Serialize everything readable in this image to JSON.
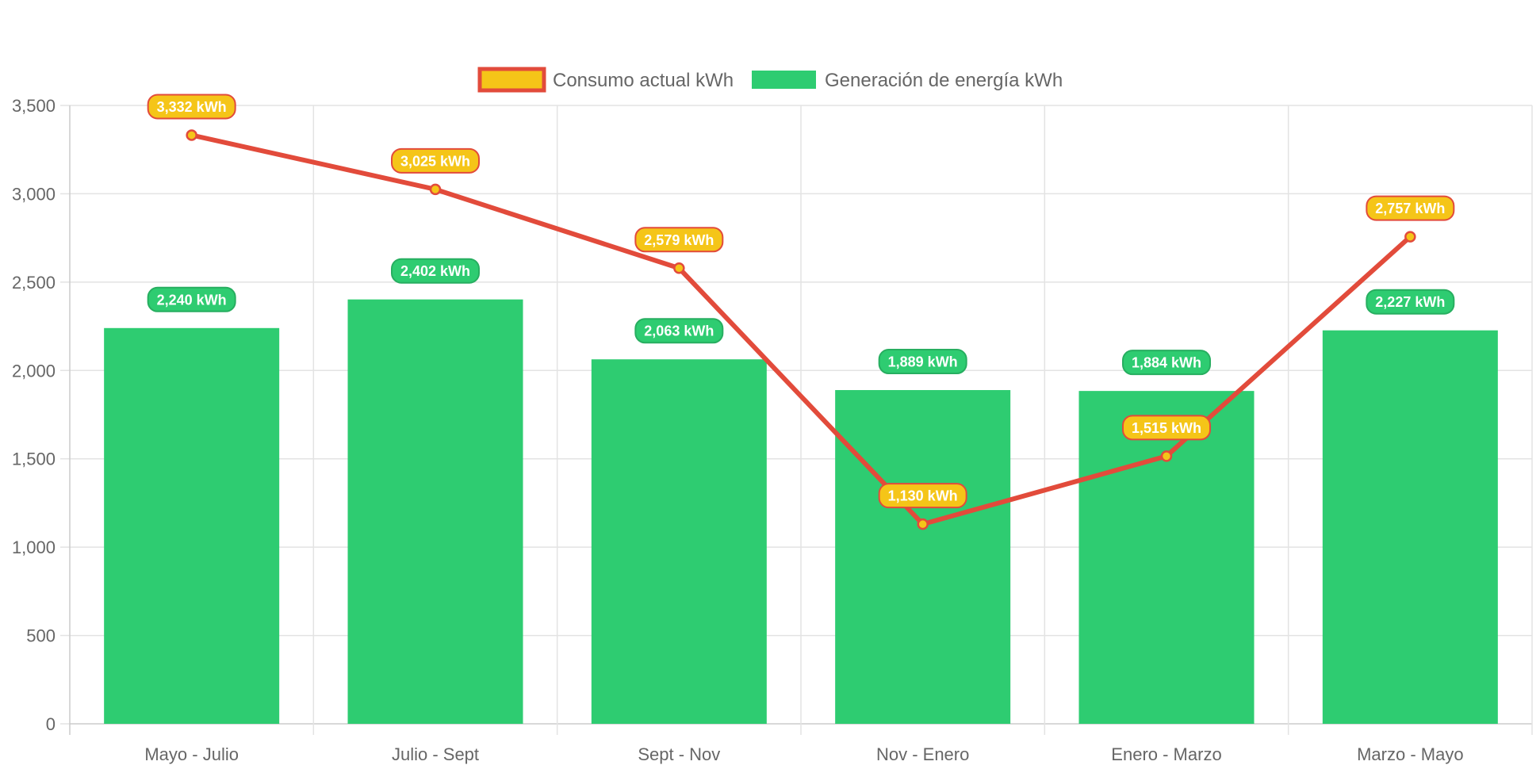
{
  "chart_data": {
    "type": "bar",
    "title": "",
    "xlabel": "",
    "ylabel": "",
    "categories": [
      "Mayo - Julio",
      "Julio - Sept",
      "Sept - Nov",
      "Nov - Enero",
      "Enero - Marzo",
      "Marzo - Mayo"
    ],
    "ylim": [
      0,
      3500
    ],
    "ytick_step": 500,
    "ytick_labels": [
      "0",
      "500",
      "1,000",
      "1,500",
      "2,000",
      "2,500",
      "3,000",
      "3,500"
    ],
    "grid": true,
    "legend_position": "top-center",
    "series": [
      {
        "name": "Consumo actual kWh",
        "type": "line",
        "values": [
          3332,
          3025,
          2579,
          1130,
          1515,
          2757
        ],
        "labels": [
          "3,332 kWh",
          "3,025 kWh",
          "2,579 kWh",
          "1,130 kWh",
          "1,515 kWh",
          "2,757 kWh"
        ],
        "color": "#E24B3B",
        "fill_color": "#F5C518"
      },
      {
        "name": "Generación de energía kWh",
        "type": "bar",
        "values": [
          2240,
          2402,
          2063,
          1889,
          1884,
          2227
        ],
        "labels": [
          "2,240 kWh",
          "2,402 kWh",
          "2,063 kWh",
          "1,889 kWh",
          "1,884 kWh",
          "2,227 kWh"
        ],
        "color": "#2ECC71",
        "label_border": "#27AE60"
      }
    ]
  }
}
